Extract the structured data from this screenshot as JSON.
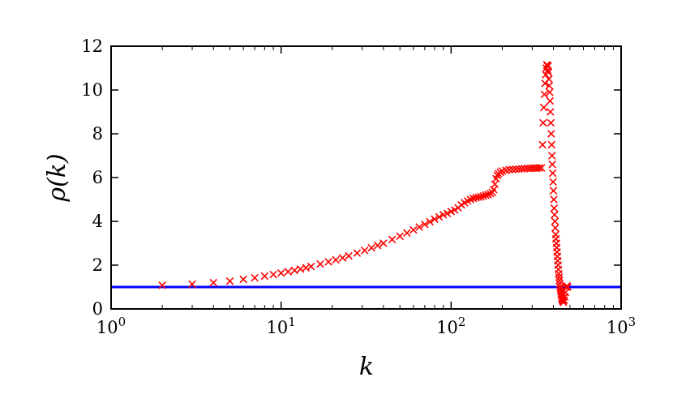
{
  "chart_data": {
    "type": "scatter",
    "title": "",
    "xlabel": "k",
    "ylabel": "ρ(k)",
    "xscale": "log",
    "xlim": [
      1,
      1000
    ],
    "ylim": [
      0,
      12
    ],
    "grid": false,
    "legend": "none",
    "x_ticks": [
      {
        "value": 1,
        "base": "10",
        "exp": "0"
      },
      {
        "value": 10,
        "base": "10",
        "exp": "1"
      },
      {
        "value": 100,
        "base": "10",
        "exp": "2"
      },
      {
        "value": 1000,
        "base": "10",
        "exp": "3"
      }
    ],
    "y_ticks": [
      0,
      2,
      4,
      6,
      8,
      10,
      12
    ],
    "reference_line": {
      "y": 1,
      "color": "#0000ff"
    },
    "series": [
      {
        "marker": "x",
        "color": "#ff0000",
        "points": [
          [
            2,
            1.08
          ],
          [
            3,
            1.13
          ],
          [
            4,
            1.2
          ],
          [
            5,
            1.27
          ],
          [
            6,
            1.35
          ],
          [
            7,
            1.42
          ],
          [
            8,
            1.5
          ],
          [
            9,
            1.57
          ],
          [
            10,
            1.64
          ],
          [
            11,
            1.7
          ],
          [
            12,
            1.76
          ],
          [
            13,
            1.82
          ],
          [
            14,
            1.88
          ],
          [
            15,
            1.94
          ],
          [
            17,
            2.05
          ],
          [
            19,
            2.15
          ],
          [
            21,
            2.24
          ],
          [
            23,
            2.33
          ],
          [
            25,
            2.42
          ],
          [
            28,
            2.55
          ],
          [
            31,
            2.67
          ],
          [
            34,
            2.79
          ],
          [
            37,
            2.9
          ],
          [
            40,
            3.0
          ],
          [
            45,
            3.17
          ],
          [
            50,
            3.32
          ],
          [
            55,
            3.47
          ],
          [
            60,
            3.61
          ],
          [
            65,
            3.74
          ],
          [
            70,
            3.86
          ],
          [
            75,
            3.98
          ],
          [
            80,
            4.1
          ],
          [
            85,
            4.2
          ],
          [
            90,
            4.3
          ],
          [
            95,
            4.36
          ],
          [
            100,
            4.45
          ],
          [
            105,
            4.52
          ],
          [
            110,
            4.62
          ],
          [
            115,
            4.75
          ],
          [
            120,
            4.85
          ],
          [
            125,
            4.93
          ],
          [
            130,
            5.0
          ],
          [
            135,
            5.05
          ],
          [
            140,
            5.08
          ],
          [
            145,
            5.1
          ],
          [
            150,
            5.13
          ],
          [
            155,
            5.16
          ],
          [
            160,
            5.2
          ],
          [
            165,
            5.22
          ],
          [
            170,
            5.27
          ],
          [
            175,
            5.32
          ],
          [
            178,
            5.45
          ],
          [
            181,
            5.7
          ],
          [
            184,
            5.95
          ],
          [
            187,
            6.1
          ],
          [
            190,
            6.18
          ],
          [
            195,
            6.24
          ],
          [
            200,
            6.3
          ],
          [
            210,
            6.33
          ],
          [
            220,
            6.36
          ],
          [
            230,
            6.37
          ],
          [
            240,
            6.38
          ],
          [
            250,
            6.39
          ],
          [
            260,
            6.4
          ],
          [
            270,
            6.41
          ],
          [
            280,
            6.42
          ],
          [
            290,
            6.42
          ],
          [
            300,
            6.43
          ],
          [
            310,
            6.43
          ],
          [
            320,
            6.43
          ],
          [
            330,
            6.44
          ],
          [
            340,
            6.44
          ],
          [
            345,
            7.5
          ],
          [
            348,
            8.5
          ],
          [
            351,
            9.2
          ],
          [
            354,
            9.8
          ],
          [
            357,
            10.3
          ],
          [
            360,
            10.7
          ],
          [
            363,
            11.0
          ],
          [
            366,
            11.15
          ],
          [
            368,
            11.1
          ],
          [
            370,
            10.9
          ],
          [
            372,
            11.1
          ],
          [
            374,
            10.8
          ],
          [
            376,
            10.5
          ],
          [
            378,
            10.2
          ],
          [
            380,
            9.9
          ],
          [
            382,
            9.5
          ],
          [
            384,
            9.0
          ],
          [
            386,
            8.5
          ],
          [
            388,
            8.0
          ],
          [
            390,
            7.5
          ],
          [
            392,
            7.0
          ],
          [
            394,
            6.6
          ],
          [
            396,
            6.2
          ],
          [
            398,
            5.8
          ],
          [
            400,
            5.4
          ],
          [
            402,
            5.0
          ],
          [
            404,
            4.6
          ],
          [
            406,
            4.3
          ],
          [
            408,
            4.0
          ],
          [
            410,
            3.7
          ],
          [
            412,
            3.4
          ],
          [
            414,
            3.2
          ],
          [
            416,
            3.0
          ],
          [
            418,
            2.8
          ],
          [
            420,
            2.6
          ],
          [
            422,
            2.4
          ],
          [
            424,
            2.2
          ],
          [
            426,
            2.0
          ],
          [
            428,
            1.8
          ],
          [
            430,
            1.6
          ],
          [
            432,
            1.45
          ],
          [
            434,
            1.3
          ],
          [
            436,
            1.15
          ],
          [
            438,
            1.0
          ],
          [
            440,
            0.9
          ],
          [
            442,
            0.8
          ],
          [
            444,
            0.7
          ],
          [
            446,
            0.6
          ],
          [
            448,
            0.5
          ],
          [
            450,
            0.45
          ],
          [
            452,
            0.4
          ],
          [
            455,
            0.35
          ],
          [
            458,
            0.3
          ],
          [
            462,
            0.4
          ],
          [
            466,
            0.55
          ],
          [
            470,
            0.75
          ],
          [
            475,
            1.0
          ],
          [
            480,
            1.05
          ],
          [
            485,
            1.0
          ]
        ]
      }
    ]
  }
}
